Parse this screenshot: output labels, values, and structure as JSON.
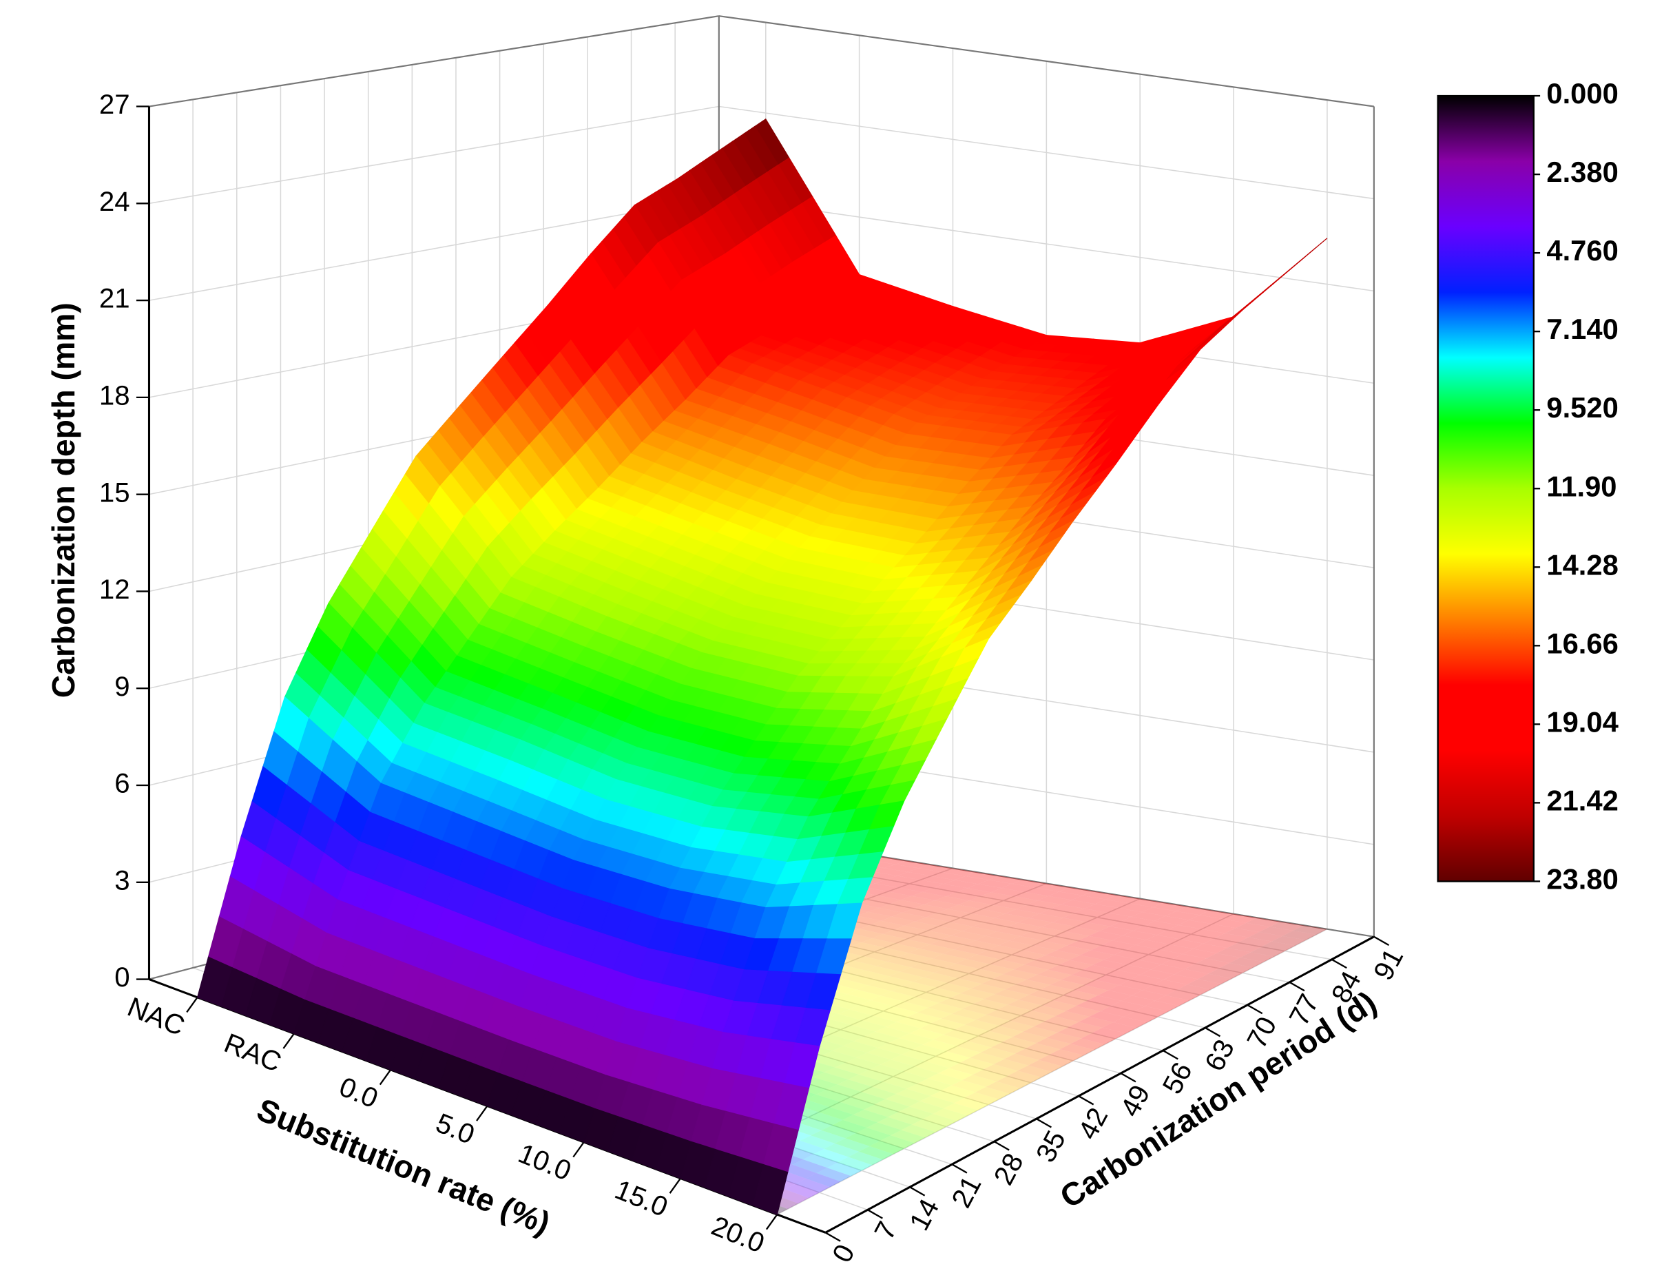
{
  "chart_data": {
    "type": "surface",
    "zlabel": "Carbonization depth (mm)",
    "xlabel": "Substitution rate (%)",
    "ylabel": "Carbonization period (d)",
    "categories": [
      "NAC",
      "RAC",
      "0.0",
      "5.0",
      "10.0",
      "15.0",
      "20.0"
    ],
    "y": [
      0,
      7,
      14,
      21,
      28,
      35,
      42,
      49,
      56,
      63,
      70,
      77,
      84,
      91
    ],
    "ylim": [
      0,
      91
    ],
    "yticks": [
      0,
      7,
      14,
      21,
      28,
      35,
      42,
      49,
      56,
      63,
      70,
      77,
      84,
      91
    ],
    "zlim": [
      0,
      27
    ],
    "zticks": [
      0,
      3,
      6,
      9,
      12,
      15,
      18,
      21,
      24,
      27
    ],
    "z": [
      [
        0,
        4.6,
        8.6,
        11.2,
        13.2,
        15.2,
        16.5,
        17.8,
        19.1,
        20.5,
        21.8,
        22.4,
        23.1,
        23.8
      ],
      [
        0,
        3.7,
        6.9,
        9.0,
        10.6,
        12.2,
        13.3,
        14.3,
        15.4,
        16.4,
        17.5,
        18.0,
        18.6,
        19.1
      ],
      [
        0,
        3.6,
        6.7,
        8.8,
        10.3,
        11.8,
        12.9,
        13.9,
        14.9,
        16.0,
        17.0,
        17.5,
        18.0,
        18.5
      ],
      [
        0,
        3.5,
        6.5,
        8.5,
        10.0,
        11.5,
        12.5,
        13.5,
        14.5,
        15.5,
        16.5,
        17.0,
        17.5,
        18.0
      ],
      [
        0,
        3.5,
        6.6,
        8.6,
        10.1,
        11.6,
        12.6,
        13.6,
        14.6,
        15.7,
        16.7,
        17.2,
        17.7,
        18.2
      ],
      [
        0,
        3.8,
        7.0,
        9.2,
        10.8,
        12.4,
        13.5,
        14.6,
        15.7,
        16.7,
        17.8,
        18.4,
        18.9,
        19.5
      ],
      [
        0,
        4.4,
        8.1,
        10.6,
        12.5,
        14.4,
        15.6,
        16.9,
        18.1,
        19.4,
        20.6,
        21.3,
        21.9,
        22.5
      ]
    ],
    "grid": true,
    "floor_projection": true,
    "colorbar": {
      "lim": [
        0,
        23.8
      ],
      "ticks": [
        {
          "value": 0,
          "label": "0.000"
        },
        {
          "value": 2.38,
          "label": "2.380"
        },
        {
          "value": 4.76,
          "label": "4.760"
        },
        {
          "value": 7.14,
          "label": "7.140"
        },
        {
          "value": 9.52,
          "label": "9.520"
        },
        {
          "value": 11.9,
          "label": "11.90"
        },
        14.28,
        16.66,
        19.04,
        21.42,
        {
          "value": 23.8,
          "label": "23.80"
        }
      ],
      "colors": [
        "#000000",
        "#8a00a8",
        "#6a00ff",
        "#0020ff",
        "#00ffff",
        "#00ff00",
        "#a8ff00",
        "#ffff00",
        "#ff8000",
        "#ff0000",
        "#ff0000",
        "#c00000",
        "#600000"
      ]
    }
  }
}
